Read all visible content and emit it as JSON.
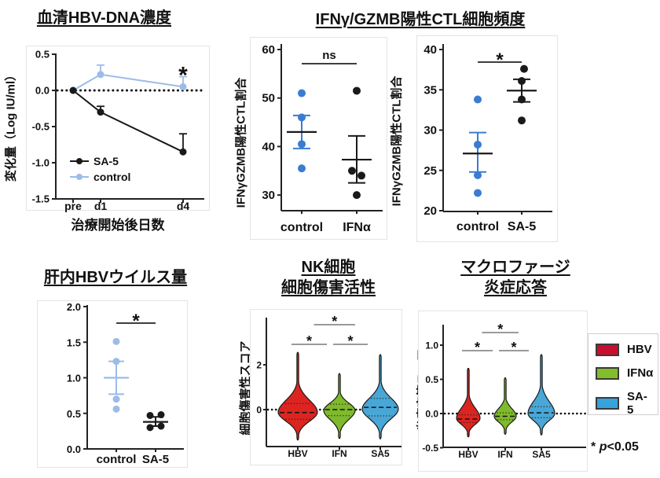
{
  "top_title": "IFNγ/GZMB陽性CTL細胞頻度",
  "legend": {
    "items": [
      {
        "label": "HBV",
        "color": "#C8102E"
      },
      {
        "label": "IFNα",
        "color": "#84BD2B"
      },
      {
        "label": "SA-5",
        "color": "#36A3DC"
      }
    ]
  },
  "note": {
    "star": "*",
    "p": "p",
    "rest": "<0.05"
  },
  "chart_data": [
    {
      "id": "serum",
      "type": "line",
      "title": "血清HBV-DNA濃度",
      "ylabel": "変化量（Log IU/ml）",
      "xlabel": "治療開始後日数",
      "x_days": [
        0,
        1,
        4
      ],
      "xtick_labels": [
        "pre",
        "d1",
        "d4"
      ],
      "ylim": [
        -1.5,
        0.5
      ],
      "yticks": [
        0.5,
        0,
        -0.5,
        -1,
        -1.5
      ],
      "ytick_labels": [
        "0.5",
        "0.0",
        "-0.5",
        "-1.0",
        "-1.5"
      ],
      "zero_line": true,
      "series": [
        {
          "name": "control",
          "color": "#9CBCE8",
          "values": [
            0,
            0.22,
            0.05
          ],
          "err_up": [
            0,
            0.13,
            0.14
          ]
        },
        {
          "name": "SA-5",
          "color": "#1A1A1A",
          "values": [
            0,
            -0.3,
            -0.85
          ],
          "err_up": [
            0,
            0.08,
            0.25
          ]
        }
      ],
      "legend_order": [
        "SA-5",
        "control"
      ],
      "annotation": {
        "text": "*",
        "at_x": 4
      }
    },
    {
      "id": "ctl_ifn",
      "type": "scatter",
      "ylabel": "IFNγGZMB陽性CTL割合",
      "ylim": [
        26.5,
        60
      ],
      "yticks": [
        60,
        50,
        40,
        30
      ],
      "groups": [
        {
          "label": "control",
          "color": "#3B7CD2",
          "err_color": "#3B7CD2",
          "mean_color": "#1A1A1A",
          "points": [
            51,
            46,
            40.5,
            35.5
          ],
          "dx": [
            0,
            0,
            0,
            0
          ],
          "mean": 43,
          "err": [
            39.6,
            46.4
          ]
        },
        {
          "label": "IFNα",
          "color": "#1A1A1A",
          "err_color": "#1A1A1A",
          "mean_color": "#1A1A1A",
          "points": [
            51.5,
            35,
            34,
            30
          ],
          "dx": [
            0,
            -6,
            6,
            0
          ],
          "mean": 37.3,
          "err": [
            32.5,
            42.2
          ]
        }
      ],
      "annotation": {
        "text": "ns"
      }
    },
    {
      "id": "ctl_sa5",
      "type": "scatter",
      "ylabel": "IFNγGZMB陽性CTL割合",
      "ylim": [
        20,
        40
      ],
      "yticks": [
        40,
        35,
        30,
        25,
        20
      ],
      "groups": [
        {
          "label": "control",
          "color": "#3B7CD2",
          "err_color": "#3B7CD2",
          "mean_color": "#1A1A1A",
          "points": [
            33.8,
            28.2,
            24.4,
            22.2
          ],
          "dx": [
            0,
            0,
            0,
            0
          ],
          "mean": 27.1,
          "err": [
            24.8,
            29.7
          ]
        },
        {
          "label": "SA-5",
          "color": "#1A1A1A",
          "err_color": "#1A1A1A",
          "mean_color": "#1A1A1A",
          "points": [
            37.6,
            36.1,
            33.8,
            31.2
          ],
          "dx": [
            3,
            0,
            0,
            0
          ],
          "mean": 34.9,
          "err": [
            33.5,
            36.3
          ]
        }
      ],
      "annotation": {
        "text": "*"
      }
    },
    {
      "id": "liver",
      "type": "scatter",
      "title": "肝内HBVウイルス量",
      "ylabel": "relative expression levels",
      "ylim": [
        0,
        2
      ],
      "yticks": [
        2,
        1.5,
        1,
        0.5,
        0
      ],
      "ytick_labels": [
        "2.0",
        "1.5",
        "1.0",
        "0.5",
        "0.0"
      ],
      "groups": [
        {
          "label": "control",
          "color": "#9CBCE8",
          "err_color": "#9CBCE8",
          "mean_color": "#9CBCE8",
          "points": [
            1.51,
            1.23,
            0.7,
            0.56
          ],
          "dx": [
            0,
            0,
            0,
            0
          ],
          "mean": 1.0,
          "err": [
            0.77,
            1.23
          ]
        },
        {
          "label": "SA-5",
          "color": "#1A1A1A",
          "err_color": "#1A1A1A",
          "mean_color": "#1A1A1A",
          "points": [
            0.47,
            0.48,
            0.3,
            0.32
          ],
          "dx": [
            -7,
            7,
            -7,
            7
          ],
          "mean": 0.38,
          "err": [
            0.32,
            0.45
          ]
        }
      ],
      "annotation": {
        "text": "*"
      }
    },
    {
      "id": "nk",
      "type": "violin",
      "title": [
        "NK細胞",
        "細胞傷害活性"
      ],
      "ylabel": "細胞傷害性スコア",
      "yticks": [
        2,
        0
      ],
      "ytick_labels": [
        "2",
        "0"
      ],
      "categories": [
        "HBV",
        "IFN",
        "SA5"
      ],
      "zero_line": true,
      "violins": [
        {
          "label": "HBV",
          "color": "#DC2420",
          "min": -1.35,
          "max": 2.55,
          "peak": -0.12,
          "median": -0.13,
          "q1": -0.43,
          "q3": 0.27
        },
        {
          "label": "IFN",
          "color": "#7FB92C",
          "min": -1.28,
          "max": 1.6,
          "peak": -0.04,
          "median": 0,
          "q1": -0.27,
          "q3": 0.24
        },
        {
          "label": "SA5",
          "color": "#48A7D6",
          "min": -1.3,
          "max": 2.45,
          "peak": 0.02,
          "median": 0.1,
          "q1": -0.28,
          "q3": 0.5
        }
      ],
      "sig": [
        {
          "a": 0,
          "b": 1,
          "level": 1,
          "text": "*"
        },
        {
          "a": 1,
          "b": 2,
          "level": 1,
          "text": "*"
        },
        {
          "a": 0,
          "b": 2,
          "level": 2,
          "text": "*"
        }
      ]
    },
    {
      "id": "mac",
      "type": "violin",
      "title": [
        "マクロファージ",
        "炎症応答"
      ],
      "ylabel": "炎症応答スコア",
      "yticks": [
        1,
        0.5,
        0,
        -0.5
      ],
      "ytick_labels": [
        "1.0",
        "0.5",
        "0.0",
        "-0.5"
      ],
      "categories": [
        "HBV",
        "IFN",
        "SA5"
      ],
      "zero_line": true,
      "violins": [
        {
          "label": "HBV",
          "color": "#DC2420",
          "min": -0.34,
          "max": 0.66,
          "peak": -0.07,
          "median": -0.08,
          "q1": -0.13,
          "q3": -0.02
        },
        {
          "label": "IFN",
          "color": "#7FB92C",
          "min": -0.3,
          "max": 0.52,
          "peak": -0.04,
          "median": -0.04,
          "q1": -0.09,
          "q3": 0.01
        },
        {
          "label": "SA5",
          "color": "#48A7D6",
          "min": -0.31,
          "max": 0.86,
          "peak": 0,
          "median": 0.01,
          "q1": -0.06,
          "q3": 0.1
        }
      ],
      "sig": [
        {
          "a": 0,
          "b": 1,
          "level": 1,
          "text": "*"
        },
        {
          "a": 1,
          "b": 2,
          "level": 1,
          "text": "*"
        },
        {
          "a": 0,
          "b": 2,
          "level": 2,
          "text": "*"
        }
      ]
    }
  ]
}
